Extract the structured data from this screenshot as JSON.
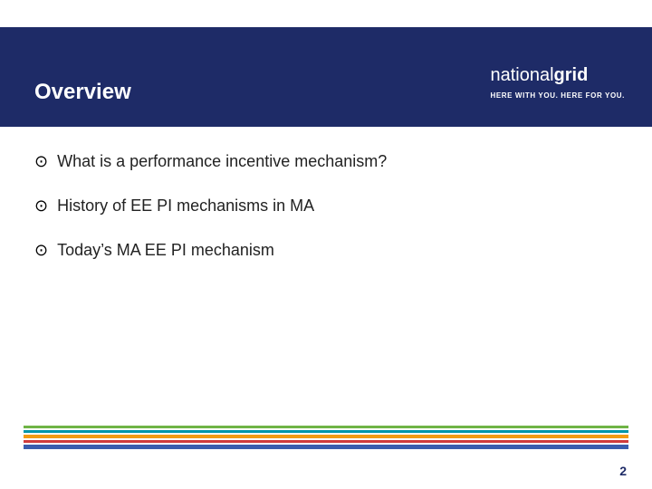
{
  "header": {
    "band_color": "#1e2b67",
    "title": "Overview",
    "title_color": "#ffffff",
    "logo_part1": "national",
    "logo_part2": "grid",
    "tagline": "HERE WITH YOU. HERE FOR YOU."
  },
  "bullets": {
    "icon_glyph": "⊙",
    "items": [
      "What is a performance incentive mechanism?",
      "History of EE PI mechanisms in MA",
      "Today’s MA EE PI mechanism"
    ]
  },
  "footer": {
    "stripes": [
      {
        "color": "#6fb445",
        "height": 3
      },
      {
        "color": "#0096a9",
        "height": 3
      },
      {
        "color": "#f39b13",
        "height": 4
      },
      {
        "color": "#d03b3c",
        "height": 3
      },
      {
        "color": "#3a5dae",
        "height": 5
      }
    ],
    "page_number": "2",
    "page_number_color": "#1e2b67"
  }
}
